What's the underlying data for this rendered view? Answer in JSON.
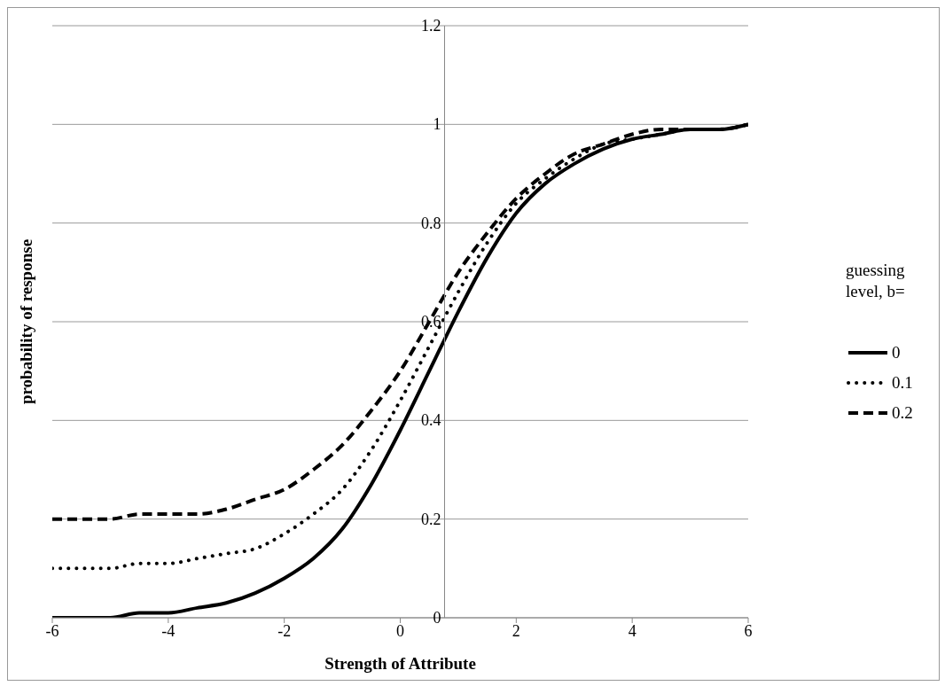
{
  "chart_data": {
    "type": "line",
    "xlabel": "Strength of Attribute",
    "ylabel": "probability of response",
    "legend_title": "guessing level, b=",
    "x": [
      -6,
      -5.5,
      -5,
      -4.5,
      -4,
      -3.5,
      -3,
      -2.5,
      -2,
      -1.5,
      -1,
      -0.5,
      0,
      0.5,
      1,
      1.5,
      2,
      2.5,
      3,
      3.5,
      4,
      4.5,
      5,
      5.5,
      6
    ],
    "series": [
      {
        "name": "0",
        "color": "#000000",
        "line_style": "solid",
        "values": [
          0.0,
          0.0,
          0.0,
          0.01,
          0.01,
          0.02,
          0.03,
          0.05,
          0.08,
          0.12,
          0.18,
          0.27,
          0.38,
          0.5,
          0.62,
          0.73,
          0.82,
          0.88,
          0.92,
          0.95,
          0.97,
          0.98,
          0.99,
          0.99,
          1.0
        ]
      },
      {
        "name": "0.1",
        "color": "#000000",
        "line_style": "dotted",
        "values": [
          0.1,
          0.1,
          0.1,
          0.11,
          0.11,
          0.12,
          0.13,
          0.14,
          0.17,
          0.21,
          0.26,
          0.34,
          0.44,
          0.55,
          0.66,
          0.76,
          0.84,
          0.89,
          0.93,
          0.96,
          0.97,
          0.98,
          0.99,
          0.99,
          1.0
        ]
      },
      {
        "name": "0.2",
        "color": "#000000",
        "line_style": "dashed",
        "values": [
          0.2,
          0.2,
          0.2,
          0.21,
          0.21,
          0.21,
          0.22,
          0.24,
          0.26,
          0.3,
          0.35,
          0.42,
          0.5,
          0.6,
          0.7,
          0.78,
          0.85,
          0.9,
          0.94,
          0.96,
          0.98,
          0.99,
          0.99,
          0.99,
          1.0
        ]
      }
    ],
    "xlim": [
      -6,
      6
    ],
    "xticks": [
      -6,
      -4,
      -2,
      0,
      2,
      4,
      6
    ],
    "ylim": [
      0,
      1.2
    ],
    "yticks": [
      0,
      0.2,
      0.4,
      0.6,
      0.8,
      1,
      1.2
    ],
    "grid": "y",
    "legend": "right",
    "marker": "none"
  }
}
